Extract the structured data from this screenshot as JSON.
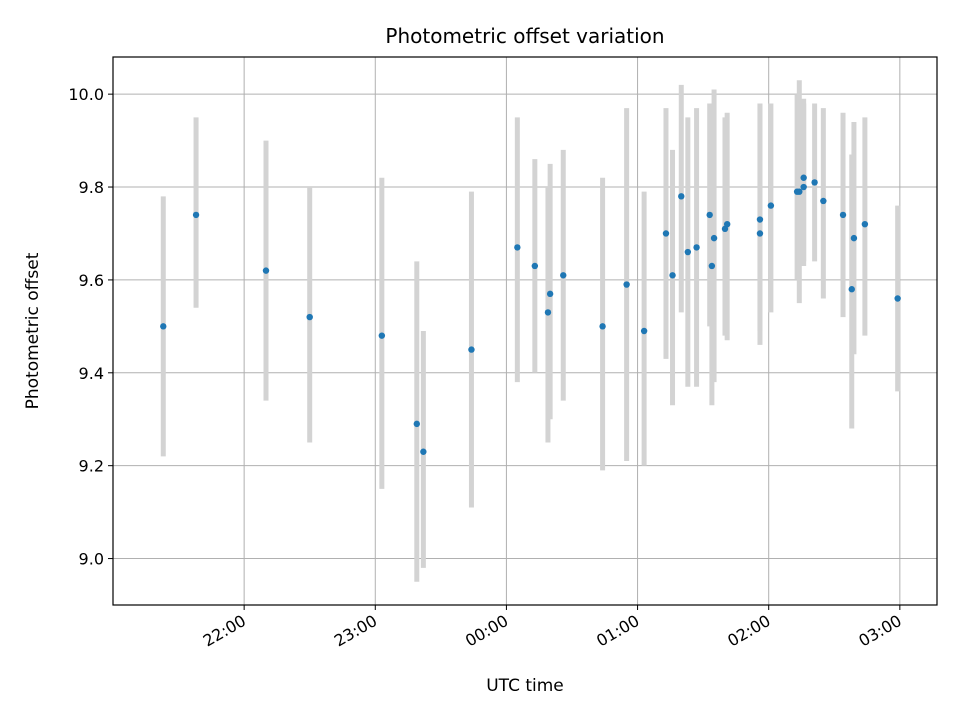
{
  "chart_data": {
    "type": "scatter",
    "title": "Photometric offset variation",
    "xlabel": "UTC time",
    "ylabel": "Photometric offset",
    "x_unit": "UTC hh:mm",
    "xlim": [
      "21:00",
      "03:17"
    ],
    "ylim": [
      8.9,
      10.08
    ],
    "grid": true,
    "colors": {
      "point": "#1f77b4",
      "errorbar": "#d3d3d3",
      "grid": "#b0b0b0"
    },
    "x_ticks": [
      "22:00",
      "23:00",
      "00:00",
      "01:00",
      "02:00",
      "03:00"
    ],
    "y_ticks": [
      "9.0",
      "9.2",
      "9.4",
      "9.6",
      "9.8",
      "10.0"
    ],
    "points": [
      {
        "x": "21:23",
        "y": 9.5,
        "lo": 9.22,
        "hi": 9.78
      },
      {
        "x": "21:38",
        "y": 9.74,
        "lo": 9.54,
        "hi": 9.95
      },
      {
        "x": "22:10",
        "y": 9.62,
        "lo": 9.34,
        "hi": 9.9
      },
      {
        "x": "22:30",
        "y": 9.52,
        "lo": 9.25,
        "hi": 9.8
      },
      {
        "x": "23:03",
        "y": 9.48,
        "lo": 9.15,
        "hi": 9.82
      },
      {
        "x": "23:19",
        "y": 9.29,
        "lo": 8.95,
        "hi": 9.64
      },
      {
        "x": "23:22",
        "y": 9.23,
        "lo": 8.98,
        "hi": 9.49
      },
      {
        "x": "23:44",
        "y": 9.45,
        "lo": 9.11,
        "hi": 9.79
      },
      {
        "x": "00:05",
        "y": 9.67,
        "lo": 9.38,
        "hi": 9.95
      },
      {
        "x": "00:13",
        "y": 9.63,
        "lo": 9.4,
        "hi": 9.86
      },
      {
        "x": "00:19",
        "y": 9.53,
        "lo": 9.25,
        "hi": 9.8
      },
      {
        "x": "00:20",
        "y": 9.57,
        "lo": 9.3,
        "hi": 9.85
      },
      {
        "x": "00:26",
        "y": 9.61,
        "lo": 9.34,
        "hi": 9.88
      },
      {
        "x": "00:44",
        "y": 9.5,
        "lo": 9.19,
        "hi": 9.82
      },
      {
        "x": "00:55",
        "y": 9.59,
        "lo": 9.21,
        "hi": 9.97
      },
      {
        "x": "01:03",
        "y": 9.49,
        "lo": 9.2,
        "hi": 9.79
      },
      {
        "x": "01:13",
        "y": 9.7,
        "lo": 9.43,
        "hi": 9.97
      },
      {
        "x": "01:16",
        "y": 9.61,
        "lo": 9.33,
        "hi": 9.88
      },
      {
        "x": "01:20",
        "y": 9.78,
        "lo": 9.53,
        "hi": 10.02
      },
      {
        "x": "01:23",
        "y": 9.66,
        "lo": 9.37,
        "hi": 9.95
      },
      {
        "x": "01:27",
        "y": 9.67,
        "lo": 9.37,
        "hi": 9.97
      },
      {
        "x": "01:33",
        "y": 9.74,
        "lo": 9.5,
        "hi": 9.98
      },
      {
        "x": "01:34",
        "y": 9.63,
        "lo": 9.33,
        "hi": 9.93
      },
      {
        "x": "01:35",
        "y": 9.69,
        "lo": 9.38,
        "hi": 10.01
      },
      {
        "x": "01:40",
        "y": 9.71,
        "lo": 9.48,
        "hi": 9.95
      },
      {
        "x": "01:41",
        "y": 9.72,
        "lo": 9.47,
        "hi": 9.96
      },
      {
        "x": "01:56",
        "y": 9.7,
        "lo": 9.46,
        "hi": 9.98
      },
      {
        "x": "01:56",
        "y": 9.73,
        "lo": 9.49,
        "hi": 9.98
      },
      {
        "x": "02:01",
        "y": 9.76,
        "lo": 9.53,
        "hi": 9.98
      },
      {
        "x": "02:13",
        "y": 9.79,
        "lo": 9.6,
        "hi": 10.0
      },
      {
        "x": "02:14",
        "y": 9.79,
        "lo": 9.55,
        "hi": 10.03
      },
      {
        "x": "02:16",
        "y": 9.82,
        "lo": 9.64,
        "hi": 9.99
      },
      {
        "x": "02:16",
        "y": 9.8,
        "lo": 9.63,
        "hi": 9.98
      },
      {
        "x": "02:21",
        "y": 9.81,
        "lo": 9.64,
        "hi": 9.98
      },
      {
        "x": "02:25",
        "y": 9.77,
        "lo": 9.56,
        "hi": 9.97
      },
      {
        "x": "02:34",
        "y": 9.74,
        "lo": 9.52,
        "hi": 9.96
      },
      {
        "x": "02:38",
        "y": 9.58,
        "lo": 9.28,
        "hi": 9.87
      },
      {
        "x": "02:39",
        "y": 9.69,
        "lo": 9.44,
        "hi": 9.94
      },
      {
        "x": "02:44",
        "y": 9.72,
        "lo": 9.48,
        "hi": 9.95
      },
      {
        "x": "02:59",
        "y": 9.56,
        "lo": 9.36,
        "hi": 9.76
      }
    ]
  }
}
